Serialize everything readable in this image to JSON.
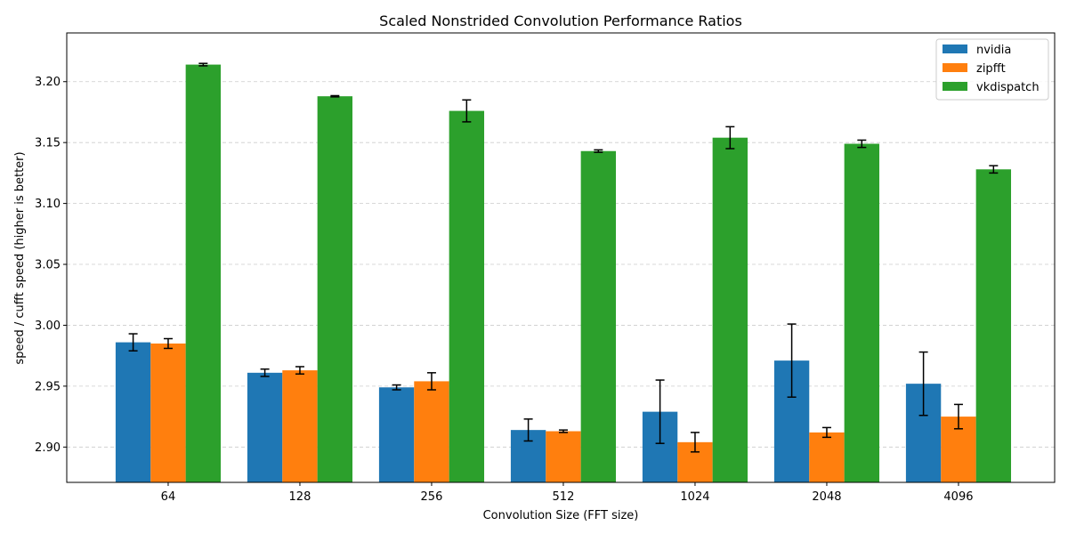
{
  "chart_data": {
    "type": "bar",
    "title": "Scaled Nonstrided Convolution Performance Ratios",
    "xlabel": "Convolution Size (FFT size)",
    "ylabel": "speed / cufft speed (higher is better)",
    "categories": [
      "64",
      "128",
      "256",
      "512",
      "1024",
      "2048",
      "4096"
    ],
    "ylim": [
      2.871,
      3.24
    ],
    "yticks": [
      "2.90",
      "2.95",
      "3.00",
      "3.05",
      "3.10",
      "3.15",
      "3.20"
    ],
    "grid": "y-dashed",
    "legend_position": "top-right",
    "series": [
      {
        "name": "nvidia",
        "color": "#1f77b4",
        "values": [
          2.986,
          2.961,
          2.949,
          2.914,
          2.929,
          2.971,
          2.952
        ],
        "errors": [
          0.007,
          0.003,
          0.002,
          0.009,
          0.026,
          0.03,
          0.026
        ]
      },
      {
        "name": "zipfft",
        "color": "#ff7f0e",
        "values": [
          2.985,
          2.963,
          2.954,
          2.913,
          2.904,
          2.912,
          2.925
        ],
        "errors": [
          0.004,
          0.003,
          0.007,
          0.001,
          0.008,
          0.004,
          0.01
        ]
      },
      {
        "name": "vkdispatch",
        "color": "#2ca02c",
        "values": [
          3.214,
          3.188,
          3.176,
          3.143,
          3.154,
          3.149,
          3.128
        ],
        "errors": [
          0.001,
          0.0005,
          0.009,
          0.001,
          0.009,
          0.003,
          0.003
        ]
      }
    ]
  }
}
